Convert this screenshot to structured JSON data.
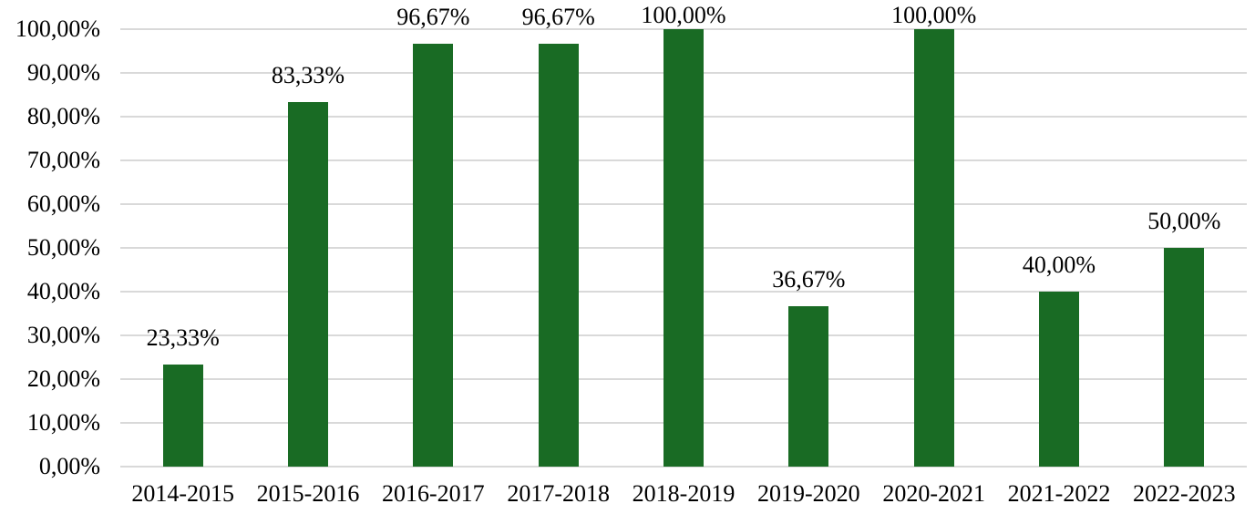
{
  "chart_data": {
    "type": "bar",
    "categories": [
      "2014-2015",
      "2015-2016",
      "2016-2017",
      "2017-2018",
      "2018-2019",
      "2019-2020",
      "2020-2021",
      "2021-2022",
      "2022-2023"
    ],
    "values": [
      23.33,
      83.33,
      96.67,
      96.67,
      100.0,
      36.67,
      100.0,
      40.0,
      50.0
    ],
    "value_labels": [
      "23,33%",
      "83,33%",
      "96,67%",
      "96,67%",
      "100,00%",
      "36,67%",
      "100,00%",
      "40,00%",
      "50,00%"
    ],
    "y_tick_values": [
      0,
      10,
      20,
      30,
      40,
      50,
      60,
      70,
      80,
      90,
      100
    ],
    "y_tick_labels": [
      "0,00%",
      "10,00%",
      "20,00%",
      "30,00%",
      "40,00%",
      "50,00%",
      "60,00%",
      "70,00%",
      "80,00%",
      "90,00%",
      "100,00%"
    ],
    "ylim": [
      0,
      100
    ],
    "grid": true,
    "legend": false,
    "title": "",
    "xlabel": "",
    "ylabel": "",
    "colors": {
      "bar": "#196B24",
      "gridline": "#D9D9D9",
      "text": "#000000",
      "background": "#FFFFFF"
    }
  }
}
